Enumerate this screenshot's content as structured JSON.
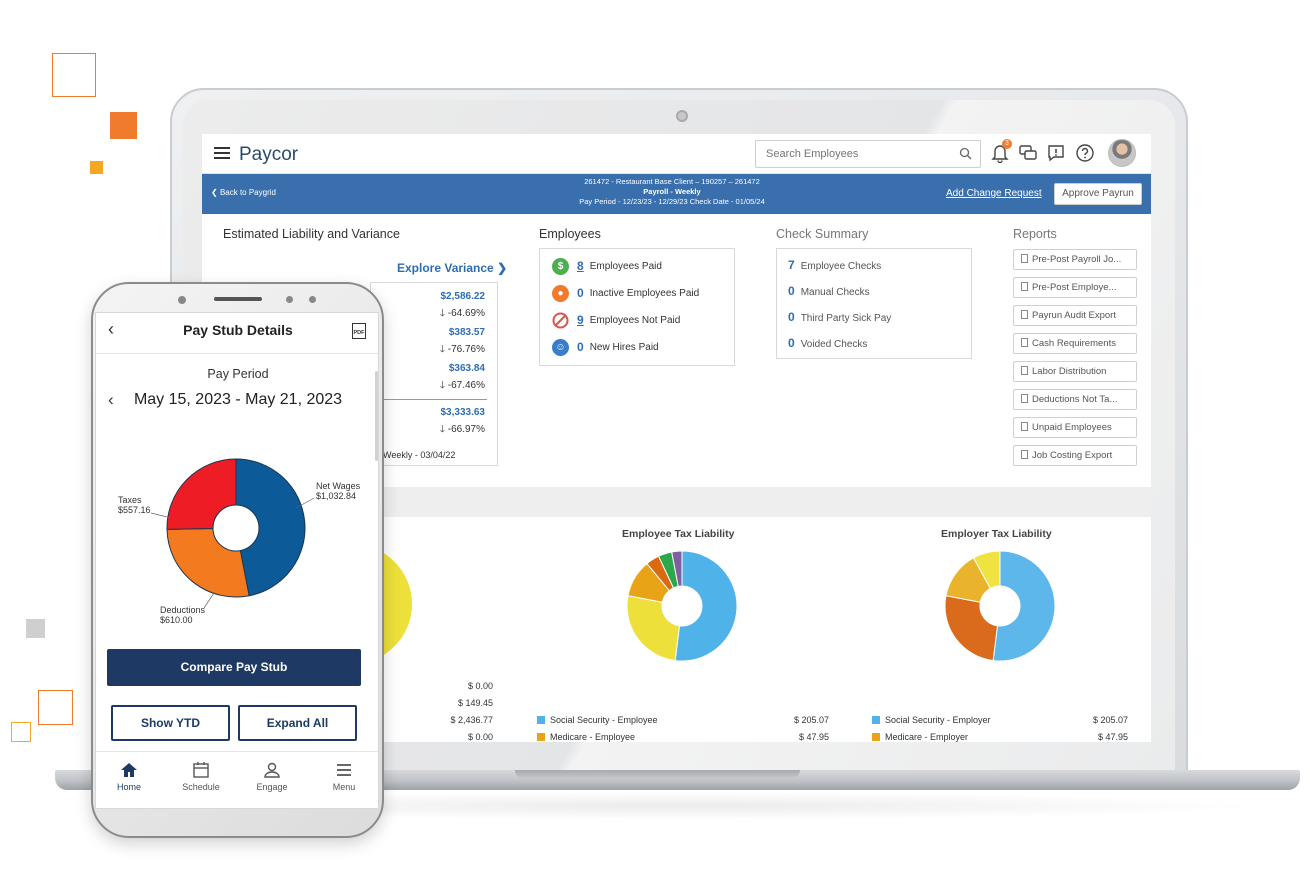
{
  "colors": {
    "accent": "#f07b2d",
    "brand_blue": "#3a6fad",
    "link": "#2f6db3",
    "navy": "#1e3a64"
  },
  "app": {
    "logo": "Paycor",
    "search_placeholder": "Search Employees",
    "notification_count": "3",
    "icons": [
      "hamburger-icon",
      "search-icon",
      "bell-icon",
      "chat-icon",
      "feedback-icon",
      "help-icon",
      "avatar"
    ]
  },
  "payroll_bar": {
    "back": "Back to Paygrid",
    "line1": "261472 - Restaurant Base Client – 190257 – 261472",
    "line2": "Payroll - Weekly",
    "line3": "Pay Period - 12/23/23 - 12/29/23   Check Date - 01/05/24",
    "add_change": "Add Change Request",
    "approve": "Approve Payrun"
  },
  "liability": {
    "title": "Estimated Liability and Variance",
    "explore": "Explore Variance",
    "values": [
      {
        "value": "$2,586.22",
        "pct": "-64.69%"
      },
      {
        "value": "$383.57",
        "pct": "-76.76%"
      },
      {
        "value": "$363.84",
        "pct": "-67.46%"
      },
      {
        "value": "$3,333.63",
        "pct": "-66.97%"
      }
    ],
    "footer": "Weekly - 03/04/22"
  },
  "employees": {
    "title": "Employees",
    "rows": [
      {
        "count": "8",
        "label": "Employees Paid",
        "icon": "dollar-icon",
        "color": "#4caf50",
        "underline": true
      },
      {
        "count": "0",
        "label": "Inactive Employees Paid",
        "icon": "inactive-user-icon",
        "color": "#f07b2d",
        "underline": false
      },
      {
        "count": "9",
        "label": "Employees Not Paid",
        "icon": "prohibited-icon",
        "color": "#d9534f",
        "underline": true
      },
      {
        "count": "0",
        "label": "New Hires Paid",
        "icon": "new-hire-icon",
        "color": "#3a7dc9",
        "underline": false
      }
    ]
  },
  "check_summary": {
    "title": "Check Summary",
    "rows": [
      {
        "count": "7",
        "label": "Employee Checks"
      },
      {
        "count": "0",
        "label": "Manual Checks"
      },
      {
        "count": "0",
        "label": "Third Party Sick Pay"
      },
      {
        "count": "0",
        "label": "Voided Checks"
      }
    ]
  },
  "reports": {
    "title": "Reports",
    "items": [
      "Pre-Post Payroll Jo...",
      "Pre-Post Employe...",
      "Payrun Audit Export",
      "Cash Requirements",
      "Labor Distribution",
      "Deductions Not Ta...",
      "Unpaid Employees",
      "Job Costing Export"
    ]
  },
  "charts_bottom": {
    "left_amounts": [
      "$ 0.00",
      "$ 149.45",
      "$ 2,436.77",
      "$ 0.00"
    ],
    "employee_title": "Employee Tax Liability",
    "employer_title": "Employer Tax Liability",
    "employee_legend": [
      {
        "label": "Social Security - Employee",
        "amount": "$ 205.07",
        "color": "#4fb3ea"
      },
      {
        "label": "Medicare - Employee",
        "amount": "$ 47.95",
        "color": "#e8a317"
      }
    ],
    "employer_legend": [
      {
        "label": "Social Security - Employer",
        "amount": "$ 205.07",
        "color": "#4fb3ea"
      },
      {
        "label": "Medicare - Employer",
        "amount": "$ 47.95",
        "color": "#e8a317"
      }
    ]
  },
  "chart_data": [
    {
      "type": "pie",
      "categories": [
        "Net Wages",
        "Deductions",
        "Taxes"
      ],
      "values": [
        1032.84,
        610.0,
        557.16
      ],
      "value_labels": [
        "$1,032.84",
        "$610.00",
        "$557.16"
      ],
      "colors": [
        "#0c5b98",
        "#f47a20",
        "#ee1c25"
      ],
      "donut": true
    },
    {
      "type": "pie",
      "title": "Employee Tax Liability",
      "categories": [
        "",
        "",
        "",
        "",
        "",
        ""
      ],
      "values": [
        52,
        26,
        11,
        4,
        4,
        3
      ],
      "colors": [
        "#4fb3ea",
        "#ede03a",
        "#e8a317",
        "#d96a12",
        "#2aa84a",
        "#7f5fa0"
      ],
      "donut": true
    },
    {
      "type": "pie",
      "title": "Employer Tax Liability",
      "categories": [
        "",
        "",
        "",
        ""
      ],
      "values": [
        52,
        26,
        14,
        8
      ],
      "colors": [
        "#5db7ea",
        "#da6a1c",
        "#eab32c",
        "#efe241"
      ],
      "donut": true
    }
  ],
  "phone": {
    "title": "Pay Stub Details",
    "period_label": "Pay Period",
    "range": "May 15, 2023 - May 21, 2023",
    "pdf": "PDF",
    "labels": {
      "net_name": "Net Wages",
      "net_value": "$1,032.84",
      "taxes_name": "Taxes",
      "taxes_value": "$557.16",
      "ded_name": "Deductions",
      "ded_value": "$610.00"
    },
    "compare": "Compare Pay Stub",
    "show_ytd": "Show YTD",
    "expand_all": "Expand All",
    "nav": [
      {
        "label": "Home",
        "icon": "home-icon"
      },
      {
        "label": "Schedule",
        "icon": "calendar-icon"
      },
      {
        "label": "Engage",
        "icon": "engage-icon"
      },
      {
        "label": "Menu",
        "icon": "menu-icon"
      }
    ]
  }
}
